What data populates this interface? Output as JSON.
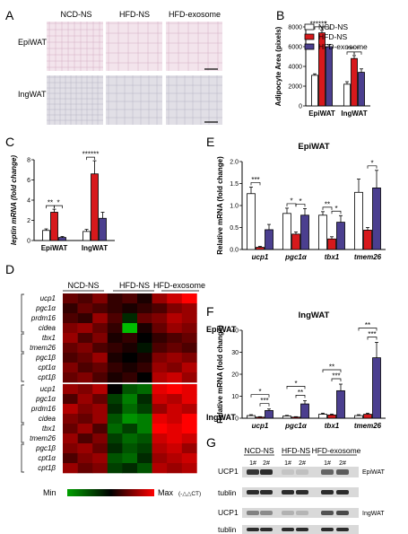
{
  "panels": {
    "A": {
      "letter": "A",
      "col_labels": [
        "NCD-NS",
        "HFD-NS",
        "HFD-exosome"
      ],
      "row_labels": [
        "EpiWAT",
        "IngWAT"
      ]
    },
    "B": {
      "letter": "B",
      "legend": [
        "NCD-NS",
        "HFD-NS",
        "HFD-exosome"
      ]
    },
    "C": {
      "letter": "C"
    },
    "D": {
      "letter": "D",
      "col_labels": [
        "NCD-NS",
        "HFD-NS",
        "HFD-exosome"
      ],
      "tissue_labels": [
        "EpiWAT",
        "IngWAT"
      ],
      "genes": [
        "ucp1",
        "pgc1α",
        "prdm16",
        "cidea",
        "tbx1",
        "tmem26",
        "pgc1β",
        "cpt1α",
        "cpt1β"
      ],
      "scale_min": "Min",
      "scale_max": "Max",
      "scale_unit": "(-△△CT)"
    },
    "E": {
      "letter": "E"
    },
    "F": {
      "letter": "F"
    },
    "G": {
      "letter": "G",
      "group_labels": [
        "NCD-NS",
        "HFD-NS",
        "HFD-exosome"
      ],
      "lane_labels": [
        "1#",
        "2#",
        "1#",
        "2#",
        "1#",
        "2#"
      ],
      "row_labels": [
        "UCP1",
        "tublin",
        "UCP1",
        "tublin"
      ],
      "tissue_labels": [
        "EpiWAT",
        "IngWAT"
      ]
    }
  },
  "colors": {
    "ncd": "#ffffff",
    "hfd": "#d7191c",
    "exo": "#4b3f8f"
  },
  "chart_data": [
    {
      "id": "B",
      "type": "bar",
      "ylabel": "Adipocyte Area (pixels)",
      "categories": [
        "EpiWAT",
        "IngWAT"
      ],
      "yticks": [
        "0",
        "2000",
        "4000",
        "6000",
        "8000"
      ],
      "ylim": [
        0,
        8000
      ],
      "series": [
        {
          "name": "NCD-NS",
          "values": [
            3100,
            2200
          ],
          "errors": [
            150,
            250
          ]
        },
        {
          "name": "HFD-NS",
          "values": [
            7400,
            4800
          ],
          "errors": [
            250,
            300
          ]
        },
        {
          "name": "HFD-exosome",
          "values": [
            6000,
            3400
          ],
          "errors": [
            200,
            350
          ]
        }
      ],
      "annotations": [
        "******",
        "*",
        "***",
        "*"
      ]
    },
    {
      "id": "C",
      "type": "bar",
      "ylabel": "leptin mRNA (fold change)",
      "categories": [
        "EpiWAT",
        "IngWAT"
      ],
      "yticks": [
        "0",
        "2",
        "4",
        "6",
        "8"
      ],
      "ylim": [
        0,
        8
      ],
      "series": [
        {
          "name": "NCD-NS",
          "values": [
            1.0,
            0.9
          ],
          "errors": [
            0.15,
            0.2
          ]
        },
        {
          "name": "HFD-NS",
          "values": [
            2.8,
            6.6
          ],
          "errors": [
            0.3,
            1.3
          ]
        },
        {
          "name": "HFD-exosome",
          "values": [
            0.3,
            2.2
          ],
          "errors": [
            0.1,
            0.6
          ]
        }
      ],
      "annotations": [
        "**",
        "*",
        "******"
      ]
    },
    {
      "id": "E",
      "type": "bar",
      "title": "EpiWAT",
      "ylabel": "Relative mRNA (fold change)",
      "categories": [
        "ucp1",
        "pgc1α",
        "tbx1",
        "tmem26"
      ],
      "yticks": [
        "0.0",
        "0.5",
        "1.0",
        "1.5",
        "2.0"
      ],
      "ylim": [
        0,
        2
      ],
      "series": [
        {
          "name": "NCD-NS",
          "values": [
            1.27,
            0.82,
            0.78,
            1.3
          ],
          "errors": [
            0.15,
            0.12,
            0.08,
            0.3
          ]
        },
        {
          "name": "HFD-NS",
          "values": [
            0.05,
            0.35,
            0.24,
            0.44
          ],
          "errors": [
            0.02,
            0.05,
            0.05,
            0.06
          ]
        },
        {
          "name": "HFD-exosome",
          "values": [
            0.45,
            0.78,
            0.62,
            1.4
          ],
          "errors": [
            0.12,
            0.15,
            0.15,
            0.4
          ]
        }
      ],
      "annotations": [
        "***",
        "*",
        "*",
        "**",
        "*",
        "*"
      ]
    },
    {
      "id": "F",
      "type": "bar",
      "title": "IngWAT",
      "ylabel": "Relative mRNA (fold change)",
      "categories": [
        "ucp1",
        "pgc1α",
        "tbx1",
        "tmem26"
      ],
      "yticks": [
        "0",
        "10",
        "20",
        "30",
        "40"
      ],
      "ylim": [
        0,
        40
      ],
      "series": [
        {
          "name": "NCD-NS",
          "values": [
            1.2,
            1.0,
            1.8,
            1.2
          ],
          "errors": [
            0.4,
            0.3,
            0.5,
            0.4
          ]
        },
        {
          "name": "HFD-NS",
          "values": [
            0.5,
            0.5,
            1.5,
            1.8
          ],
          "errors": [
            0.2,
            0.2,
            0.4,
            0.5
          ]
        },
        {
          "name": "HFD-exosome",
          "values": [
            3.5,
            6.5,
            12.5,
            27.5
          ],
          "errors": [
            0.7,
            1.5,
            3.0,
            7.0
          ]
        }
      ],
      "annotations": [
        "*",
        "***",
        "*",
        "**",
        "**",
        "***",
        "**",
        "***"
      ]
    },
    {
      "id": "D",
      "type": "heatmap",
      "scale": "green-black-red",
      "blocks": [
        {
          "tissue": "EpiWAT",
          "rows": [
            [
              0.4,
              0.3,
              0.5,
              0.2,
              0.3,
              0.1,
              0.6,
              0.8,
              1.0
            ],
            [
              0.2,
              0.4,
              0.3,
              0.2,
              0.1,
              0.2,
              0.3,
              0.5,
              0.6
            ],
            [
              0.3,
              0.2,
              0.6,
              0.3,
              -0.2,
              0.4,
              0.5,
              0.7,
              0.6
            ],
            [
              0.5,
              0.6,
              0.4,
              0.2,
              -0.9,
              0.1,
              0.4,
              0.6,
              0.5
            ],
            [
              0.6,
              0.3,
              0.5,
              0.1,
              0.2,
              0.0,
              0.2,
              0.3,
              0.4
            ],
            [
              0.4,
              0.5,
              0.3,
              0.2,
              0.1,
              -0.1,
              0.3,
              0.4,
              0.3
            ],
            [
              0.3,
              0.4,
              0.6,
              0.1,
              0.0,
              0.1,
              0.5,
              0.6,
              0.5
            ],
            [
              0.5,
              0.3,
              0.4,
              0.2,
              0.1,
              0.2,
              0.6,
              0.5,
              0.7
            ],
            [
              0.4,
              0.5,
              0.3,
              0.1,
              0.2,
              0.0,
              0.7,
              0.8,
              0.6
            ]
          ]
        },
        {
          "tissue": "IngWAT",
          "rows": [
            [
              0.6,
              0.5,
              0.7,
              0.0,
              -0.4,
              -0.5,
              0.9,
              1.0,
              0.9
            ],
            [
              0.3,
              0.6,
              0.4,
              -0.3,
              -0.6,
              -0.2,
              0.8,
              0.7,
              0.9
            ],
            [
              0.7,
              0.5,
              0.6,
              -0.2,
              -0.5,
              -0.3,
              0.6,
              0.8,
              0.7
            ],
            [
              0.5,
              0.4,
              0.6,
              -0.4,
              -0.7,
              -0.6,
              0.9,
              0.8,
              1.0
            ],
            [
              0.4,
              0.6,
              0.3,
              -0.5,
              -0.3,
              -0.6,
              1.0,
              0.9,
              1.0
            ],
            [
              0.6,
              0.3,
              0.5,
              -0.3,
              -0.5,
              -0.4,
              0.8,
              0.9,
              0.8
            ],
            [
              0.5,
              0.6,
              0.4,
              -0.2,
              -0.4,
              -0.3,
              0.7,
              0.8,
              0.6
            ],
            [
              0.3,
              0.5,
              0.6,
              -0.4,
              -0.5,
              -0.2,
              0.6,
              0.7,
              0.8
            ],
            [
              0.6,
              0.4,
              0.5,
              -0.3,
              -0.2,
              -0.4,
              0.7,
              0.6,
              0.7
            ]
          ]
        }
      ]
    }
  ]
}
